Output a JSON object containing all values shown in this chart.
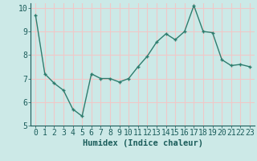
{
  "x": [
    0,
    1,
    2,
    3,
    4,
    5,
    6,
    7,
    8,
    9,
    10,
    11,
    12,
    13,
    14,
    15,
    16,
    17,
    18,
    19,
    20,
    21,
    22,
    23
  ],
  "y": [
    9.7,
    7.2,
    6.8,
    6.5,
    5.7,
    5.4,
    7.2,
    7.0,
    7.0,
    6.85,
    7.0,
    7.5,
    7.95,
    8.55,
    8.9,
    8.65,
    9.0,
    10.1,
    9.0,
    8.95,
    7.8,
    7.55,
    7.6,
    7.5
  ],
  "title": "",
  "xlabel": "Humidex (Indice chaleur)",
  "ylabel": "",
  "xlim": [
    -0.5,
    23.5
  ],
  "ylim": [
    5,
    10.2
  ],
  "yticks": [
    5,
    6,
    7,
    8,
    9,
    10
  ],
  "xticks": [
    0,
    1,
    2,
    3,
    4,
    5,
    6,
    7,
    8,
    9,
    10,
    11,
    12,
    13,
    14,
    15,
    16,
    17,
    18,
    19,
    20,
    21,
    22,
    23
  ],
  "line_color": "#2e7d6e",
  "marker": "+",
  "bg_color": "#cce9e7",
  "grid_major_color": "#f0c8c8",
  "grid_minor_color": "#cce9e7",
  "label_color": "#1a5c5a",
  "xlabel_fontsize": 7.5,
  "tick_fontsize": 7,
  "line_width": 1.0,
  "marker_size": 3.5,
  "marker_edge_width": 1.0
}
